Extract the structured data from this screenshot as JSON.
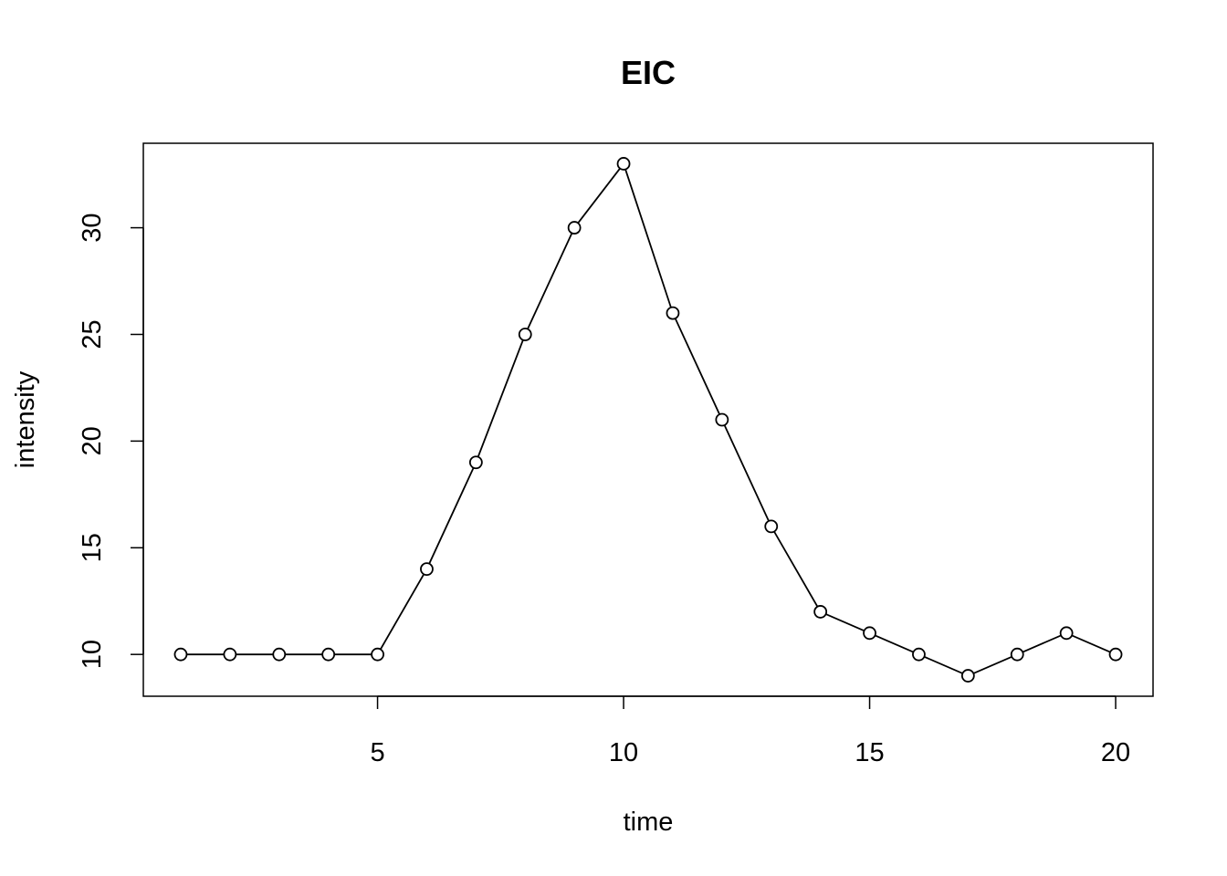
{
  "chart_data": {
    "type": "line",
    "markers": "open-circle",
    "title": "EIC",
    "xlabel": "time",
    "ylabel": "intensity",
    "x": [
      1,
      2,
      3,
      4,
      5,
      6,
      7,
      8,
      9,
      10,
      11,
      12,
      13,
      14,
      15,
      16,
      17,
      18,
      19,
      20
    ],
    "series": [
      {
        "values": [
          10,
          10,
          10,
          10,
          10,
          14,
          19,
          25,
          30,
          33,
          26,
          21,
          16,
          12,
          11,
          10,
          9,
          10,
          11,
          10
        ]
      }
    ],
    "xlim": [
      0.24,
      20.76
    ],
    "ylim": [
      8.04,
      33.96
    ],
    "xticks": [
      5,
      10,
      15,
      20
    ],
    "yticks": [
      10,
      15,
      20,
      25,
      30
    ],
    "grid": false,
    "legend": "none",
    "colors": {
      "line": "#000000",
      "marker": "#000000",
      "background": "#ffffff"
    }
  }
}
